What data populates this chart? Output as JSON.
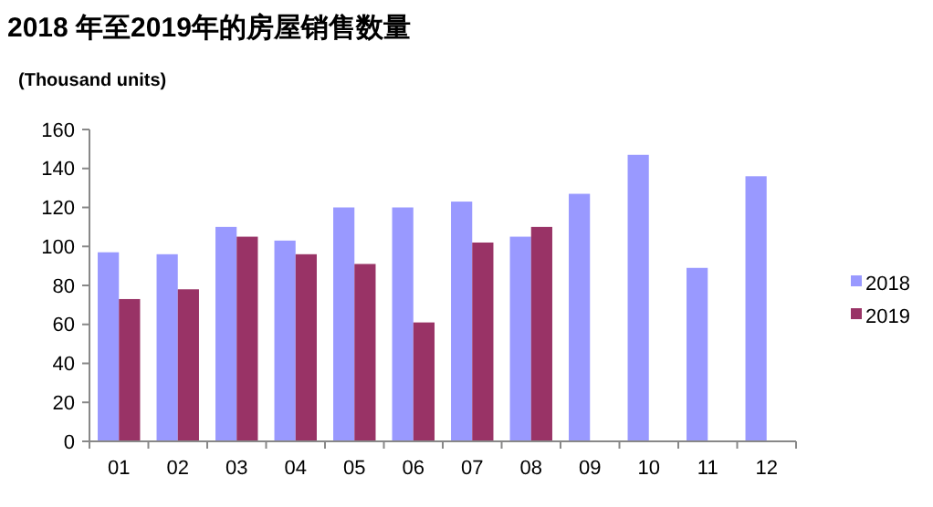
{
  "chart_data": {
    "type": "bar",
    "title": "2018 年至2019年的房屋销售数量",
    "ylabel": "(Thousand units)",
    "categories": [
      "01",
      "02",
      "03",
      "04",
      "05",
      "06",
      "07",
      "08",
      "09",
      "10",
      "11",
      "12"
    ],
    "series": [
      {
        "name": "2018",
        "color": "#9999ff",
        "values": [
          97,
          96,
          110,
          103,
          120,
          120,
          123,
          105,
          127,
          147,
          89,
          136
        ]
      },
      {
        "name": "2019",
        "color": "#993366",
        "values": [
          73,
          78,
          105,
          96,
          91,
          61,
          102,
          110,
          null,
          null,
          null,
          null
        ]
      }
    ],
    "ylim": [
      0,
      160
    ],
    "yticks": [
      0,
      20,
      40,
      60,
      80,
      100,
      120,
      140,
      160
    ],
    "legend": "right",
    "grid": false
  }
}
